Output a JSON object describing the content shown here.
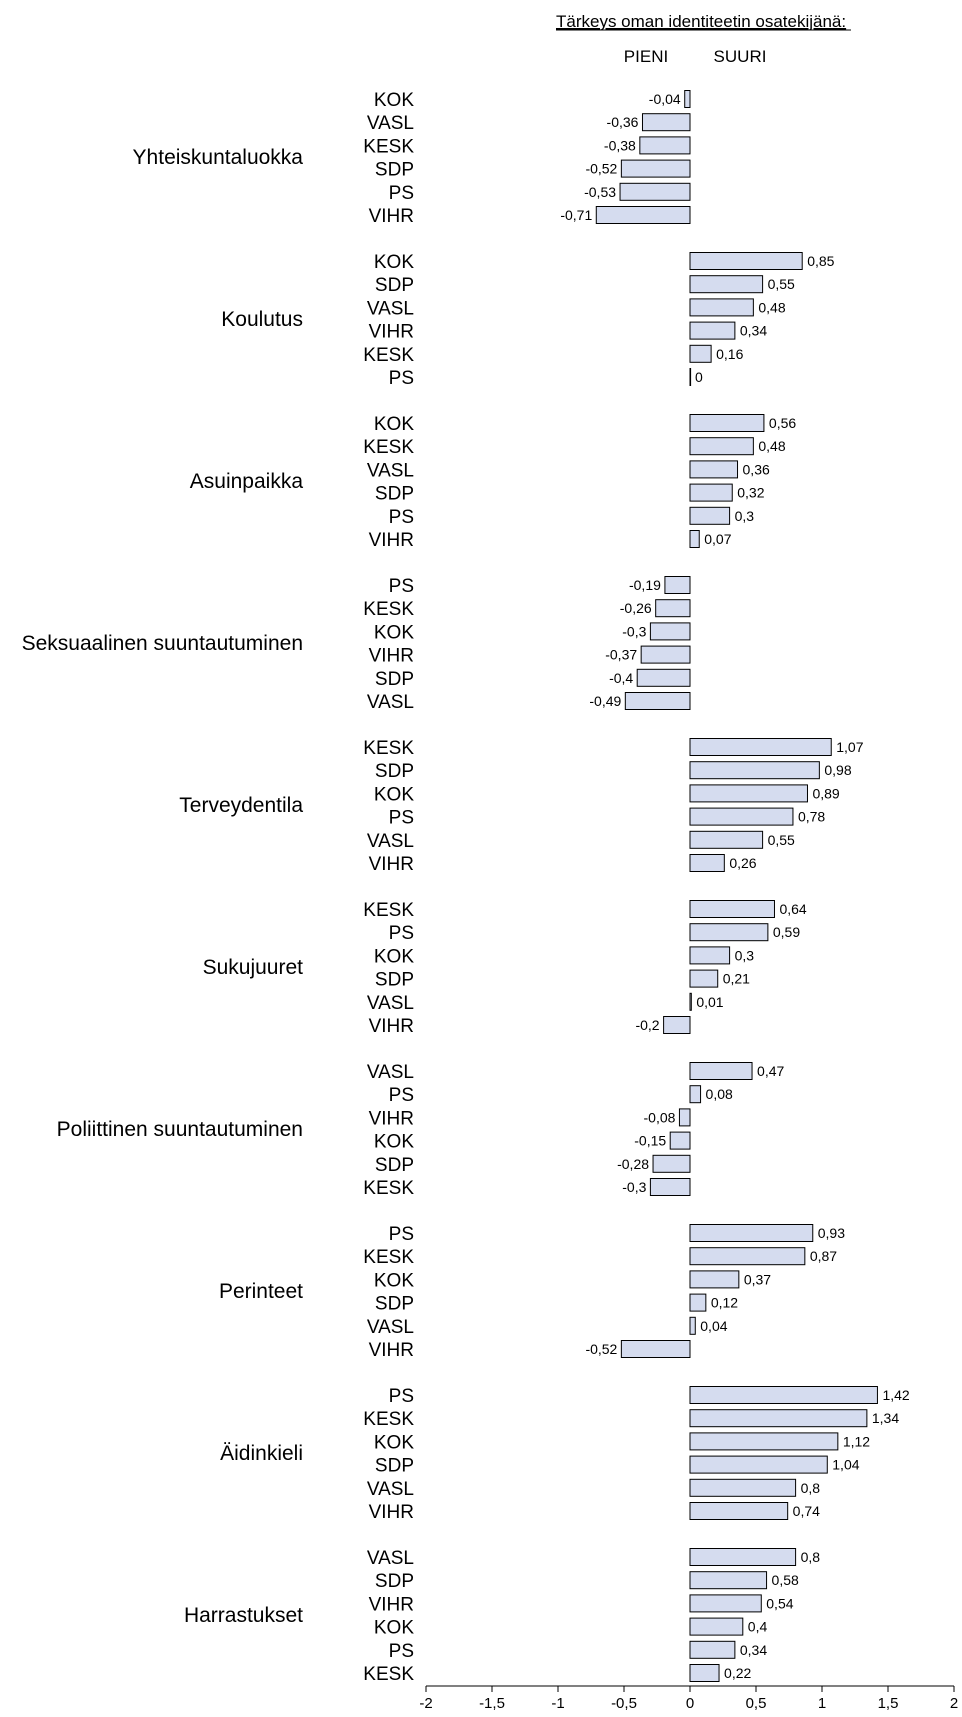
{
  "colors": {
    "bar_fill": "#d5dcef",
    "bar_stroke": "#000000",
    "axis": "#000000"
  },
  "chart_data": {
    "type": "bar",
    "orientation": "horizontal",
    "title": "Tärkeys oman identiteetin osatekijänä:",
    "low_label": "PIENI",
    "high_label": "SUURI",
    "xlim": [
      -2,
      2
    ],
    "xticks": [
      -2,
      -1.5,
      -1,
      -0.5,
      0,
      0.5,
      1,
      1.5,
      2
    ],
    "xtick_labels": [
      "-2",
      "-1,5",
      "-1",
      "-0,5",
      "0",
      "0,5",
      "1",
      "1,5",
      "2"
    ],
    "groups": [
      {
        "label": "Yhteiskuntaluokka",
        "items": [
          {
            "party": "KOK",
            "value": -0.04,
            "label": "-0,04"
          },
          {
            "party": "VASL",
            "value": -0.36,
            "label": "-0,36"
          },
          {
            "party": "KESK",
            "value": -0.38,
            "label": "-0,38"
          },
          {
            "party": "SDP",
            "value": -0.52,
            "label": "-0,52"
          },
          {
            "party": "PS",
            "value": -0.53,
            "label": "-0,53"
          },
          {
            "party": "VIHR",
            "value": -0.71,
            "label": "-0,71"
          }
        ]
      },
      {
        "label": "Koulutus",
        "items": [
          {
            "party": "KOK",
            "value": 0.85,
            "label": "0,85"
          },
          {
            "party": "SDP",
            "value": 0.55,
            "label": "0,55"
          },
          {
            "party": "VASL",
            "value": 0.48,
            "label": "0,48"
          },
          {
            "party": "VIHR",
            "value": 0.34,
            "label": "0,34"
          },
          {
            "party": "KESK",
            "value": 0.16,
            "label": "0,16"
          },
          {
            "party": "PS",
            "value": 0,
            "label": "0"
          }
        ]
      },
      {
        "label": "Asuinpaikka",
        "items": [
          {
            "party": "KOK",
            "value": 0.56,
            "label": "0,56"
          },
          {
            "party": "KESK",
            "value": 0.48,
            "label": "0,48"
          },
          {
            "party": "VASL",
            "value": 0.36,
            "label": "0,36"
          },
          {
            "party": "SDP",
            "value": 0.32,
            "label": "0,32"
          },
          {
            "party": "PS",
            "value": 0.3,
            "label": "0,3"
          },
          {
            "party": "VIHR",
            "value": 0.07,
            "label": "0,07"
          }
        ]
      },
      {
        "label": "Seksuaalinen suuntautuminen",
        "items": [
          {
            "party": "PS",
            "value": -0.19,
            "label": "-0,19"
          },
          {
            "party": "KESK",
            "value": -0.26,
            "label": "-0,26"
          },
          {
            "party": "KOK",
            "value": -0.3,
            "label": "-0,3"
          },
          {
            "party": "VIHR",
            "value": -0.37,
            "label": "-0,37"
          },
          {
            "party": "SDP",
            "value": -0.4,
            "label": "-0,4"
          },
          {
            "party": "VASL",
            "value": -0.49,
            "label": "-0,49"
          }
        ]
      },
      {
        "label": "Terveydentila",
        "items": [
          {
            "party": "KESK",
            "value": 1.07,
            "label": "1,07"
          },
          {
            "party": "SDP",
            "value": 0.98,
            "label": "0,98"
          },
          {
            "party": "KOK",
            "value": 0.89,
            "label": "0,89"
          },
          {
            "party": "PS",
            "value": 0.78,
            "label": "0,78"
          },
          {
            "party": "VASL",
            "value": 0.55,
            "label": "0,55"
          },
          {
            "party": "VIHR",
            "value": 0.26,
            "label": "0,26"
          }
        ]
      },
      {
        "label": "Sukujuuret",
        "items": [
          {
            "party": "KESK",
            "value": 0.64,
            "label": "0,64"
          },
          {
            "party": "PS",
            "value": 0.59,
            "label": "0,59"
          },
          {
            "party": "KOK",
            "value": 0.3,
            "label": "0,3"
          },
          {
            "party": "SDP",
            "value": 0.21,
            "label": "0,21"
          },
          {
            "party": "VASL",
            "value": 0.01,
            "label": "0,01"
          },
          {
            "party": "VIHR",
            "value": -0.2,
            "label": "-0,2"
          }
        ]
      },
      {
        "label": "Poliittinen suuntautuminen",
        "items": [
          {
            "party": "VASL",
            "value": 0.47,
            "label": "0,47"
          },
          {
            "party": "PS",
            "value": 0.08,
            "label": "0,08"
          },
          {
            "party": "VIHR",
            "value": -0.08,
            "label": "-0,08"
          },
          {
            "party": "KOK",
            "value": -0.15,
            "label": "-0,15"
          },
          {
            "party": "SDP",
            "value": -0.28,
            "label": "-0,28"
          },
          {
            "party": "KESK",
            "value": -0.3,
            "label": "-0,3"
          }
        ]
      },
      {
        "label": "Perinteet",
        "items": [
          {
            "party": "PS",
            "value": 0.93,
            "label": "0,93"
          },
          {
            "party": "KESK",
            "value": 0.87,
            "label": "0,87"
          },
          {
            "party": "KOK",
            "value": 0.37,
            "label": "0,37"
          },
          {
            "party": "SDP",
            "value": 0.12,
            "label": "0,12"
          },
          {
            "party": "VASL",
            "value": 0.04,
            "label": "0,04"
          },
          {
            "party": "VIHR",
            "value": -0.52,
            "label": "-0,52"
          }
        ]
      },
      {
        "label": "Äidinkieli",
        "items": [
          {
            "party": "PS",
            "value": 1.42,
            "label": "1,42"
          },
          {
            "party": "KESK",
            "value": 1.34,
            "label": "1,34"
          },
          {
            "party": "KOK",
            "value": 1.12,
            "label": "1,12"
          },
          {
            "party": "SDP",
            "value": 1.04,
            "label": "1,04"
          },
          {
            "party": "VASL",
            "value": 0.8,
            "label": "0,8"
          },
          {
            "party": "VIHR",
            "value": 0.74,
            "label": "0,74"
          }
        ]
      },
      {
        "label": "Harrastukset",
        "items": [
          {
            "party": "VASL",
            "value": 0.8,
            "label": "0,8"
          },
          {
            "party": "SDP",
            "value": 0.58,
            "label": "0,58"
          },
          {
            "party": "VIHR",
            "value": 0.54,
            "label": "0,54"
          },
          {
            "party": "KOK",
            "value": 0.4,
            "label": "0,4"
          },
          {
            "party": "PS",
            "value": 0.34,
            "label": "0,34"
          },
          {
            "party": "KESK",
            "value": 0.22,
            "label": "0,22"
          }
        ]
      }
    ]
  }
}
